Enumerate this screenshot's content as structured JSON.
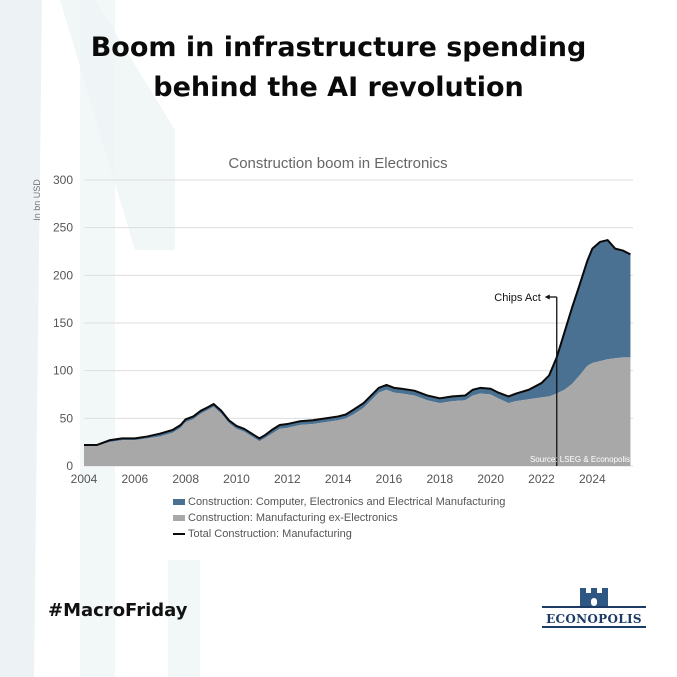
{
  "headline": {
    "line1": "Boom in infrastructure spending",
    "line2": "behind the AI revolution"
  },
  "hashtag": "#MacroFriday",
  "logo": {
    "text": "ECONOPOLIS",
    "color": "#2e5783",
    "icon": "castle-tower-icon"
  },
  "chart_data": {
    "type": "area",
    "title": "Construction boom in Electronics",
    "ylabel": "In bn USD",
    "xlabel": "",
    "xlim": [
      2004,
      2025.6
    ],
    "ylim": [
      0,
      300
    ],
    "xticks": [
      2004,
      2006,
      2008,
      2010,
      2012,
      2014,
      2016,
      2018,
      2020,
      2022,
      2024
    ],
    "yticks": [
      0,
      50,
      100,
      150,
      200,
      250,
      300
    ],
    "grid": "horizontal",
    "legend_position": "bottom-left",
    "source": "Source: LSEG  & Econopolis",
    "annotation": {
      "text": "Chips Act",
      "x": 2022.6
    },
    "x": [
      2004.0,
      2004.5,
      2005.0,
      2005.5,
      2006.0,
      2006.5,
      2007.0,
      2007.5,
      2007.8,
      2008.0,
      2008.3,
      2008.6,
      2008.9,
      2009.1,
      2009.4,
      2009.7,
      2010.0,
      2010.3,
      2010.6,
      2010.9,
      2011.1,
      2011.4,
      2011.7,
      2012.0,
      2012.5,
      2013.0,
      2013.5,
      2014.0,
      2014.3,
      2014.6,
      2015.0,
      2015.3,
      2015.6,
      2015.9,
      2016.2,
      2016.5,
      2017.0,
      2017.5,
      2018.0,
      2018.5,
      2019.0,
      2019.3,
      2019.6,
      2020.0,
      2020.3,
      2020.7,
      2021.0,
      2021.5,
      2022.0,
      2022.3,
      2022.6,
      2022.9,
      2023.2,
      2023.5,
      2023.8,
      2024.0,
      2024.3,
      2024.6,
      2024.9,
      2025.2,
      2025.5
    ],
    "series": [
      {
        "name": "Construction: Computer, Electronics and Electrical Manufacturing",
        "color": "#4a7092",
        "kind": "area",
        "values": [
          1,
          1,
          2,
          2,
          2,
          2,
          3,
          3,
          3,
          3,
          3,
          3,
          3,
          3,
          3,
          3,
          3,
          3,
          3,
          3,
          3,
          4,
          4,
          4,
          4,
          4,
          4,
          4,
          4,
          5,
          5,
          5,
          5,
          5,
          5,
          5,
          5,
          5,
          5,
          5,
          5,
          6,
          6,
          6,
          6,
          7,
          8,
          10,
          15,
          22,
          38,
          60,
          80,
          95,
          110,
          120,
          125,
          125,
          115,
          112,
          108
        ]
      },
      {
        "name": "Construction: Manufacturing ex-Electronics",
        "color": "#a8a8a8",
        "kind": "area",
        "values": [
          21,
          21,
          25,
          27,
          27,
          29,
          31,
          35,
          40,
          46,
          49,
          55,
          59,
          62,
          55,
          45,
          39,
          36,
          31,
          26,
          29,
          34,
          39,
          40,
          43,
          44,
          46,
          48,
          50,
          54,
          61,
          69,
          77,
          80,
          77,
          76,
          74,
          69,
          66,
          68,
          69,
          74,
          76,
          75,
          71,
          66,
          68,
          70,
          72,
          73,
          76,
          80,
          86,
          95,
          105,
          108,
          110,
          112,
          113,
          114,
          114
        ]
      },
      {
        "name": "Total Construction: Manufacturing",
        "color": "#0a0a0a",
        "kind": "line",
        "values": [
          22,
          22,
          27,
          29,
          29,
          31,
          34,
          38,
          43,
          49,
          52,
          58,
          62,
          65,
          58,
          48,
          42,
          39,
          34,
          29,
          32,
          38,
          43,
          44,
          47,
          48,
          50,
          52,
          54,
          59,
          66,
          74,
          82,
          85,
          82,
          81,
          79,
          74,
          71,
          73,
          74,
          80,
          82,
          81,
          77,
          73,
          76,
          80,
          87,
          95,
          114,
          140,
          166,
          190,
          215,
          228,
          235,
          237,
          228,
          226,
          222
        ]
      }
    ]
  }
}
